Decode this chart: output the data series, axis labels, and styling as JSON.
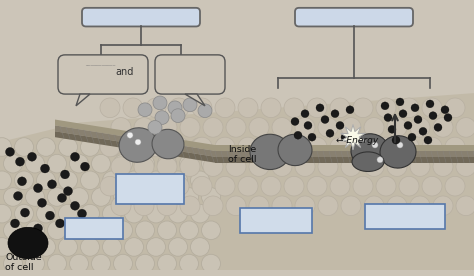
{
  "bg_color": "#ccc5b8",
  "inside_color": "#c0b9ac",
  "outside_color": "#b8b0a3",
  "membrane_color1": "#a09880",
  "membrane_color2": "#8a8070",
  "membrane_hatch_color": "#706858",
  "box_fill_blue": "#ccd8e8",
  "box_edge": "#555555",
  "box_edge_blue": "#4477aa",
  "and_label": "and",
  "inside_label": "Inside\nof cell",
  "outside_label": "Outside\nof cell",
  "energy_label": "← Energy",
  "dot_color": "#1a1a1a",
  "gray_dot_color": "#888888",
  "protein_color": "#777777",
  "blob_color": "#111111"
}
